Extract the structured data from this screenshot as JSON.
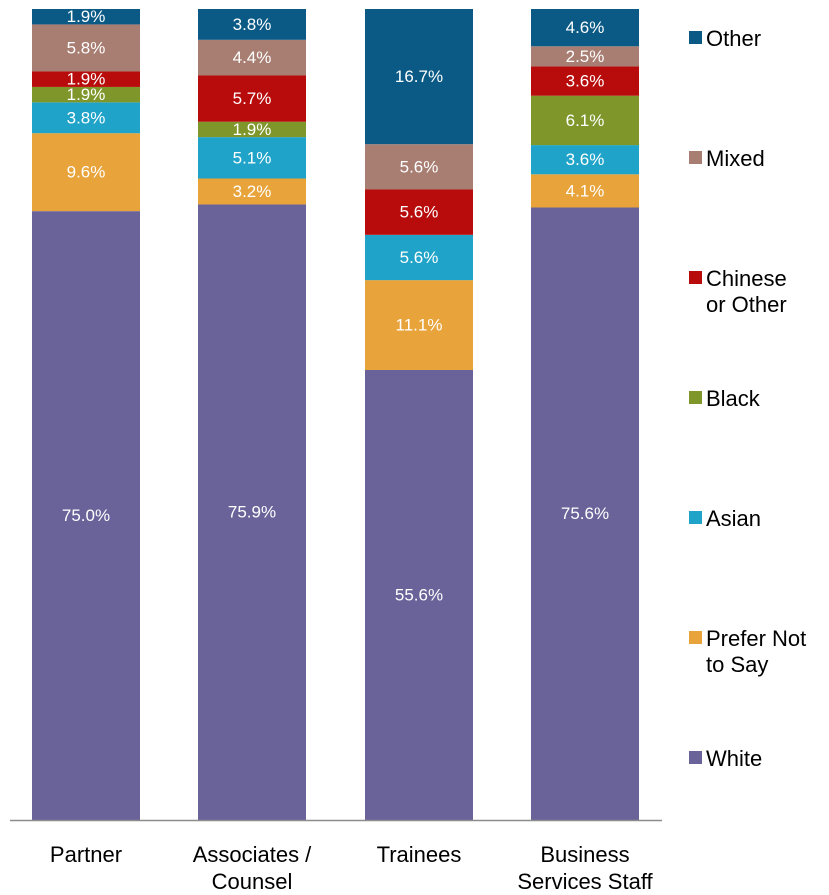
{
  "chart_data": {
    "type": "bar",
    "stacked": true,
    "normalized": true,
    "categories": [
      [
        "Partner"
      ],
      [
        "Associates /",
        "Counsel"
      ],
      [
        "Trainees"
      ],
      [
        "Business",
        "Services Staff"
      ]
    ],
    "series": [
      {
        "name": "White",
        "color": "#6a6399",
        "values": [
          75.0,
          75.9,
          55.6,
          75.6
        ]
      },
      {
        "name": [
          "Prefer Not",
          "to Say"
        ],
        "color": "#e8a33a",
        "values": [
          9.6,
          3.2,
          11.1,
          4.1
        ]
      },
      {
        "name": "Asian",
        "color": "#1fa3c8",
        "values": [
          3.8,
          5.1,
          5.6,
          3.6
        ]
      },
      {
        "name": "Black",
        "color": "#7f962b",
        "values": [
          1.9,
          1.9,
          0,
          6.1
        ]
      },
      {
        "name": [
          "Chinese",
          "or Other"
        ],
        "color": "#b80c0c",
        "values": [
          1.9,
          5.7,
          5.6,
          3.6
        ]
      },
      {
        "name": "Mixed",
        "color": "#a87e72",
        "values": [
          5.8,
          4.4,
          5.6,
          2.5
        ]
      },
      {
        "name": "Other",
        "color": "#0a5a85",
        "values": [
          1.9,
          3.8,
          16.7,
          4.6
        ]
      }
    ],
    "data_labels": [
      [
        "75.0%",
        "9.6%",
        "3.8%",
        "1.9%",
        "1.9%",
        "5.8%",
        "1.9%"
      ],
      [
        "75.9%",
        "3.2%",
        "5.1%",
        "1.9%",
        "5.7%",
        "4.4%",
        "3.8%"
      ],
      [
        "55.6%",
        "11.1%",
        "5.6%",
        "",
        "5.6%",
        "5.6%",
        "16.7%"
      ],
      [
        "75.6%",
        "4.1%",
        "3.6%",
        "6.1%",
        "3.6%",
        "2.5%",
        "4.6%"
      ]
    ],
    "ylim": [
      0,
      100
    ],
    "legend_position": "right",
    "grid": false
  }
}
